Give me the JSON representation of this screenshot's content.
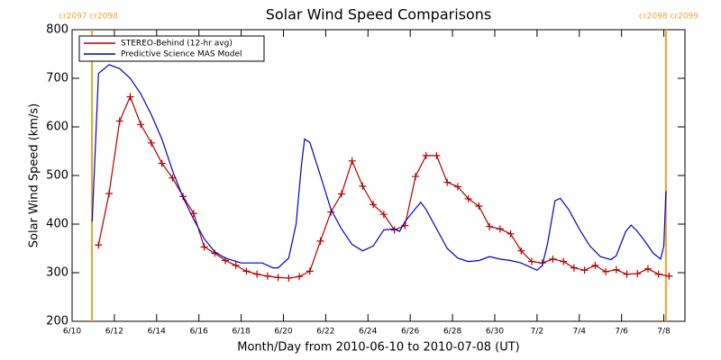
{
  "chart_data": {
    "type": "line",
    "title": "Solar Wind Speed Comparisons",
    "xlabel": "Month/Day from 2010-06-10 to 2010-07-08 (UT)",
    "ylabel": "Solar Wind Speed (km/s)",
    "xlim": [
      0,
      29
    ],
    "ylim": [
      200,
      800
    ],
    "yticks": [
      200,
      300,
      400,
      500,
      600,
      700,
      800
    ],
    "xticks": [
      {
        "value": 0,
        "label": "6/10"
      },
      {
        "value": 2,
        "label": "6/12"
      },
      {
        "value": 4,
        "label": "6/14"
      },
      {
        "value": 6,
        "label": "6/16"
      },
      {
        "value": 8,
        "label": "6/18"
      },
      {
        "value": 10,
        "label": "6/20"
      },
      {
        "value": 12,
        "label": "6/22"
      },
      {
        "value": 14,
        "label": "6/24"
      },
      {
        "value": 16,
        "label": "6/26"
      },
      {
        "value": 18,
        "label": "6/28"
      },
      {
        "value": 20,
        "label": "6/30"
      },
      {
        "value": 22,
        "label": "7/2"
      },
      {
        "value": 24,
        "label": "7/4"
      },
      {
        "value": 26,
        "label": "7/6"
      },
      {
        "value": 28,
        "label": "7/8"
      }
    ],
    "vlines": [
      {
        "x": 0.94,
        "label": "cr2097 cr2098",
        "color": "#f0a030"
      },
      {
        "x": 28.1,
        "label": "cr2098 cr2099",
        "color": "#f0a030"
      }
    ],
    "legend": "upper left",
    "series": [
      {
        "name": "STEREO-Behind (12-hr avg)",
        "color": "#b00000",
        "marker": "+",
        "x": [
          1.25,
          1.75,
          2.25,
          2.75,
          3.25,
          3.75,
          4.25,
          4.75,
          5.25,
          5.75,
          6.25,
          6.75,
          7.25,
          7.75,
          8.25,
          8.75,
          9.25,
          9.75,
          10.25,
          10.75,
          11.25,
          11.75,
          12.25,
          12.75,
          13.25,
          13.75,
          14.25,
          14.75,
          15.25,
          15.75,
          16.25,
          16.75,
          17.25,
          17.75,
          18.25,
          18.75,
          19.25,
          19.75,
          20.25,
          20.75,
          21.25,
          21.75,
          22.25,
          22.75,
          23.25,
          23.75,
          24.25,
          24.75,
          25.25,
          25.75,
          26.25,
          26.75,
          27.25,
          27.75,
          28.25
        ],
        "values": [
          357,
          463,
          612,
          662,
          605,
          567,
          525,
          495,
          457,
          422,
          353,
          340,
          325,
          315,
          303,
          297,
          293,
          290,
          289,
          292,
          303,
          365,
          425,
          462,
          530,
          478,
          440,
          420,
          388,
          397,
          498,
          541,
          541,
          486,
          477,
          452,
          437,
          395,
          390,
          380,
          345,
          323,
          320,
          328,
          323,
          310,
          305,
          315,
          302,
          306,
          297,
          298,
          308,
          297,
          293
        ]
      },
      {
        "name": "Predictive Science MAS Model",
        "color": "#0000c8",
        "x": [
          0.95,
          1.25,
          1.75,
          2.25,
          2.75,
          3.25,
          3.75,
          4.25,
          4.75,
          5.25,
          5.75,
          6.25,
          6.75,
          7.25,
          8,
          9,
          9.5,
          9.75,
          10.25,
          10.6,
          10.85,
          11,
          11.25,
          11.75,
          12.25,
          12.75,
          13.25,
          13.75,
          14.25,
          14.75,
          15.25,
          15.5,
          15.75,
          16.25,
          16.5,
          16.75,
          17.25,
          17.75,
          18.25,
          18.75,
          19.25,
          19.75,
          20.25,
          20.75,
          21.25,
          21.75,
          22,
          22.25,
          22.5,
          22.85,
          23.1,
          23.5,
          24,
          24.5,
          25,
          25.5,
          25.75,
          26.2,
          26.45,
          26.75,
          27.1,
          27.5,
          27.85,
          28,
          28.1
        ],
        "values": [
          405,
          710,
          728,
          720,
          700,
          668,
          625,
          575,
          510,
          455,
          410,
          370,
          343,
          330,
          320,
          320,
          310,
          310,
          330,
          400,
          520,
          575,
          568,
          500,
          430,
          390,
          358,
          345,
          355,
          388,
          390,
          385,
          405,
          432,
          445,
          430,
          390,
          350,
          330,
          323,
          325,
          333,
          328,
          325,
          320,
          310,
          305,
          315,
          360,
          448,
          453,
          430,
          390,
          355,
          333,
          327,
          335,
          385,
          398,
          385,
          365,
          340,
          328,
          355,
          468
        ]
      }
    ]
  }
}
